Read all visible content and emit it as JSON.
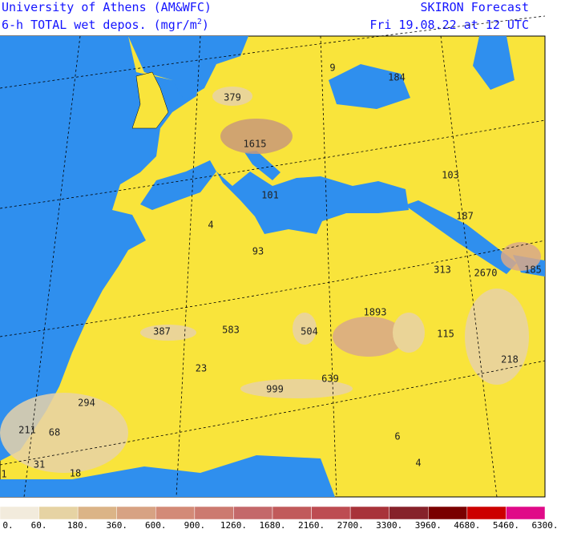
{
  "header": {
    "title": "University of Athens (AM&WFC)",
    "subtitle": "6-h TOTAL wet depos. (mgr/m",
    "subtitle_sup": "2",
    "subtitle_end": ")",
    "product": "SKIRON Forecast",
    "valid_time": "Fri 19.08.22 at 12 UTC"
  },
  "map": {
    "labels": [
      "9",
      "184",
      "379",
      "1615",
      "103",
      "101",
      "187",
      "4",
      "93",
      "313",
      "2670",
      "185",
      "1893",
      "387",
      "583",
      "504",
      "115",
      "23",
      "218",
      "999",
      "639",
      "294",
      "211",
      "68",
      "6",
      "31",
      "18",
      "4",
      "1"
    ]
  },
  "legend": {
    "labels": [
      "0.",
      "60.",
      "180.",
      "360.",
      "600.",
      "900.",
      "1260.",
      "1680.",
      "2160.",
      "2700.",
      "3300.",
      "3960.",
      "4680.",
      "5460.",
      "6300."
    ]
  }
}
